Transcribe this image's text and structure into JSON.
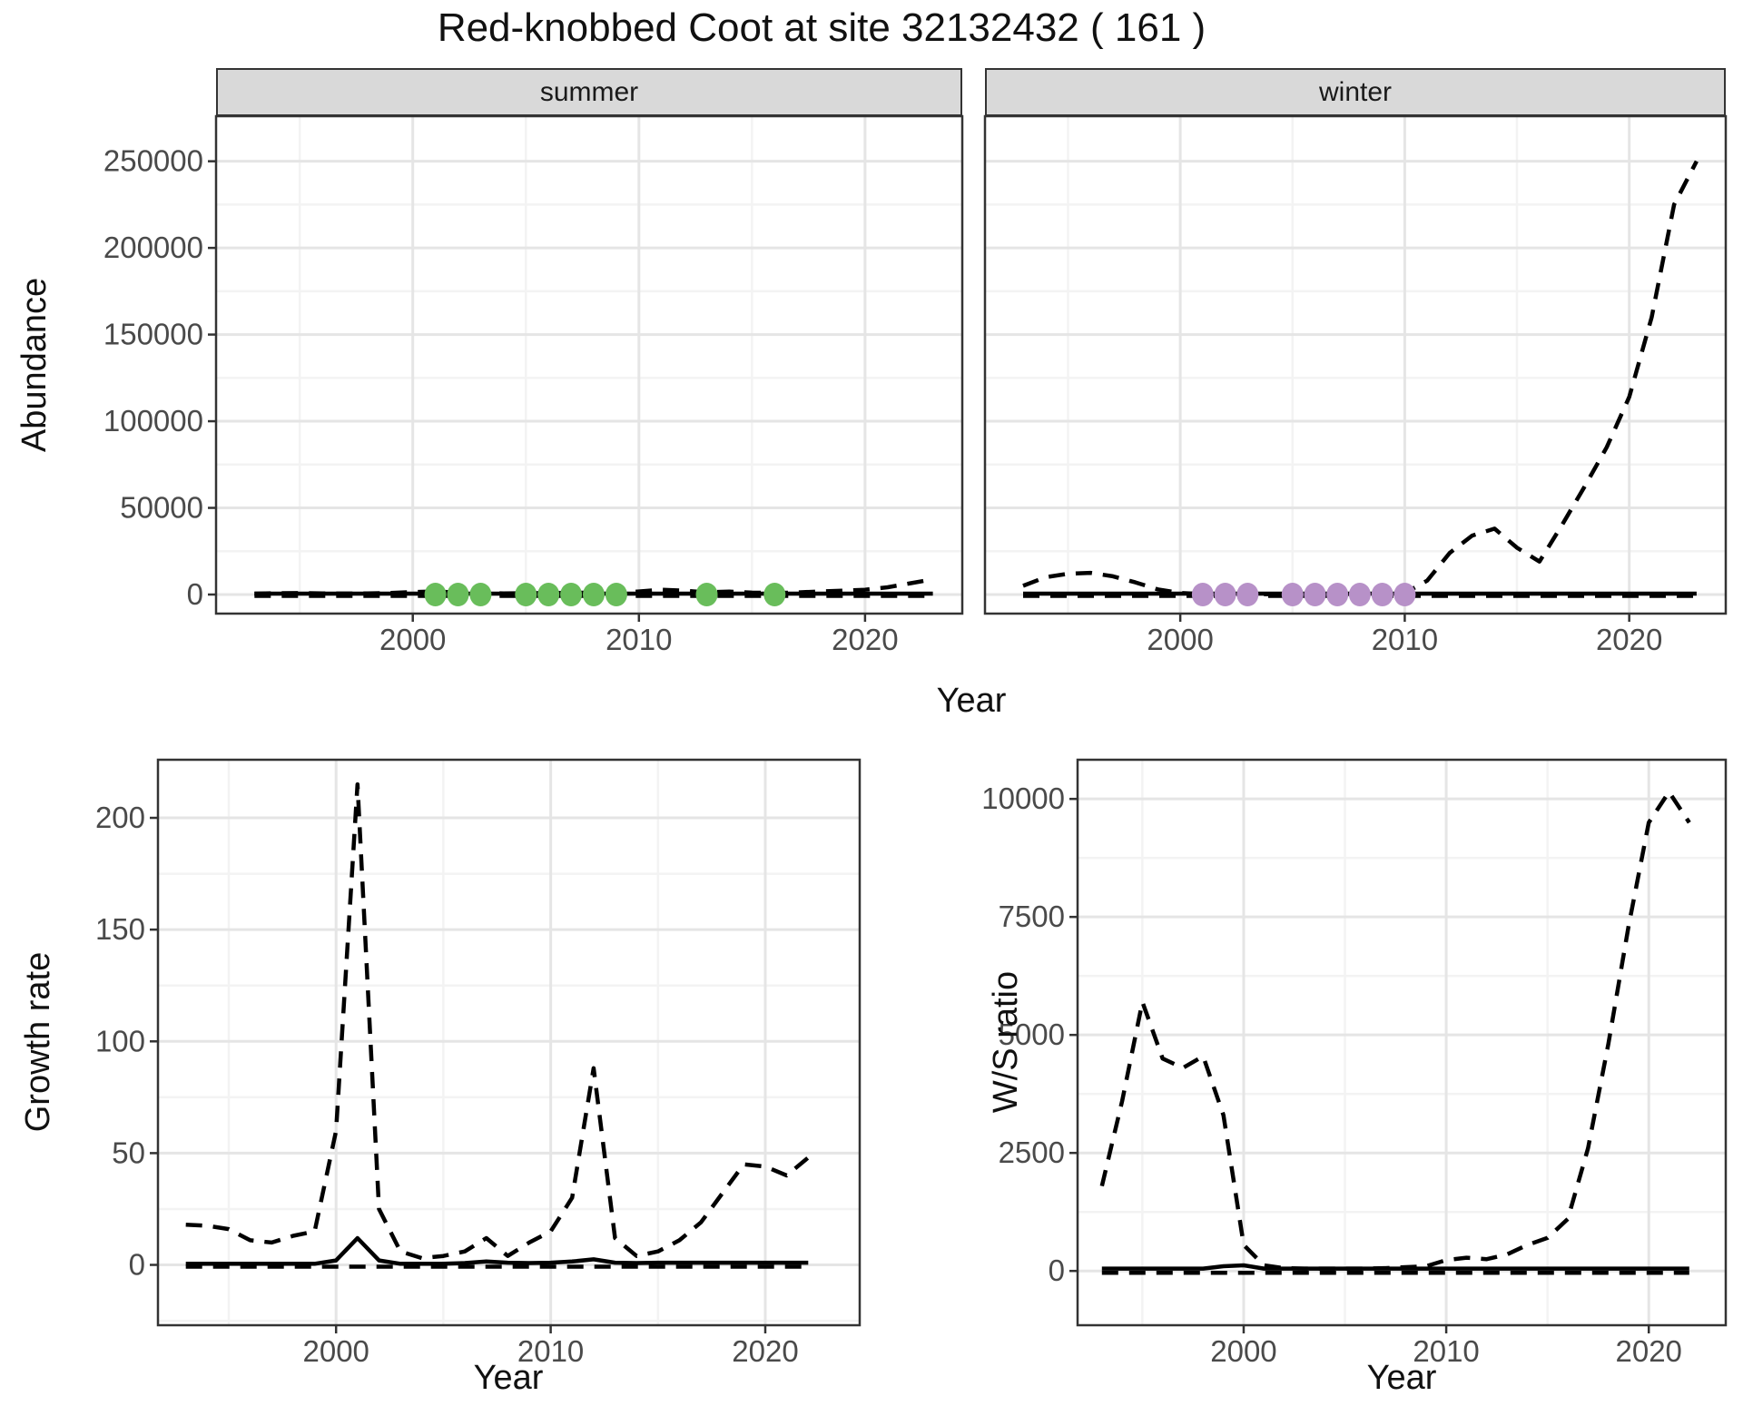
{
  "title": "Red-knobbed Coot at site 32132432 ( 161 )",
  "palette": {
    "line": "#000000",
    "grid_major": "#e5e5e5",
    "grid_minor": "#f3f3f3",
    "panel_border": "#333333",
    "strip_fill": "#d9d9d9",
    "tick_text": "#4a4a4a",
    "summer_point": "#69bd5b",
    "winter_point": "#b791c8"
  },
  "chart_data": [
    {
      "id": "abundance",
      "type": "line",
      "ylabel": "Abundance",
      "xlabel": "Year",
      "x": [
        1993,
        1994,
        1995,
        1996,
        1997,
        1998,
        1999,
        2000,
        2001,
        2002,
        2003,
        2004,
        2005,
        2006,
        2007,
        2008,
        2009,
        2010,
        2011,
        2012,
        2013,
        2014,
        2015,
        2016,
        2017,
        2018,
        2019,
        2020,
        2021,
        2022,
        2023
      ],
      "x_tick_values": [
        2000,
        2010,
        2020
      ],
      "x_tick_labels": [
        "2000",
        "2010",
        "2020"
      ],
      "y_tick_values": [
        0,
        50000,
        100000,
        150000,
        200000,
        250000
      ],
      "y_tick_labels": [
        "0",
        "50000",
        "100000",
        "150000",
        "200000",
        "250000"
      ],
      "xlim": [
        1991.3,
        2024.3
      ],
      "ylim": [
        -11000,
        276000
      ],
      "legend": "none",
      "facets": [
        {
          "label": "summer",
          "series": [
            {
              "name": "upper-ci",
              "style": "dashed",
              "values": [
                500,
                800,
                900,
                700,
                600,
                700,
                900,
                1400,
                1800,
                1200,
                900,
                700,
                800,
                900,
                1000,
                1100,
                900,
                1800,
                2800,
                2200,
                1300,
                1700,
                1100,
                900,
                1200,
                1800,
                2200,
                2800,
                4200,
                6500,
                8800
              ]
            },
            {
              "name": "median",
              "style": "solid",
              "values": [
                500,
                500,
                500,
                500,
                500,
                500,
                500,
                500,
                500,
                500,
                500,
                500,
                500,
                500,
                500,
                500,
                500,
                500,
                500,
                500,
                500,
                500,
                500,
                500,
                500,
                500,
                500,
                500,
                500,
                500,
                500
              ]
            },
            {
              "name": "lower-ci",
              "style": "dashed",
              "values": [
                -800,
                -800,
                -800,
                -800,
                -800,
                -800,
                -800,
                -800,
                -800,
                -800,
                -800,
                -800,
                -800,
                -800,
                -800,
                -800,
                -800,
                -800,
                -800,
                -800,
                -800,
                -800,
                -800,
                -800,
                -800,
                -800,
                -800,
                -800,
                -800,
                -800,
                -800
              ]
            }
          ],
          "points": {
            "name": "observed-counts-summer",
            "color": "#69bd5b",
            "x": [
              2001,
              2002,
              2003,
              2005,
              2006,
              2007,
              2008,
              2009,
              2013,
              2016
            ],
            "y": [
              0,
              0,
              0,
              0,
              0,
              0,
              0,
              0,
              0,
              0
            ]
          }
        },
        {
          "label": "winter",
          "series": [
            {
              "name": "upper-ci",
              "style": "dashed",
              "values": [
                5000,
                10000,
                12000,
                12500,
                10500,
                7000,
                3000,
                900,
                300,
                200,
                200,
                200,
                200,
                250,
                300,
                350,
                400,
                800,
                8000,
                24000,
                34000,
                38000,
                27000,
                19000,
                40000,
                62000,
                85000,
                114000,
                160000,
                225000,
                250000
              ]
            },
            {
              "name": "median",
              "style": "solid",
              "values": [
                500,
                500,
                500,
                500,
                500,
                500,
                500,
                500,
                500,
                500,
                500,
                500,
                500,
                500,
                500,
                500,
                500,
                500,
                500,
                500,
                500,
                500,
                500,
                500,
                500,
                500,
                500,
                500,
                500,
                500,
                500
              ]
            },
            {
              "name": "lower-ci",
              "style": "dashed",
              "values": [
                -800,
                -800,
                -800,
                -800,
                -800,
                -800,
                -800,
                -800,
                -800,
                -800,
                -800,
                -800,
                -800,
                -800,
                -800,
                -800,
                -800,
                -800,
                -800,
                -800,
                -800,
                -800,
                -800,
                -800,
                -800,
                -800,
                -800,
                -800,
                -800,
                -800,
                -800
              ]
            }
          ],
          "points": {
            "name": "observed-counts-winter",
            "color": "#b791c8",
            "x": [
              2001,
              2002,
              2003,
              2005,
              2006,
              2007,
              2008,
              2009,
              2010
            ],
            "y": [
              0,
              0,
              0,
              0,
              0,
              0,
              0,
              0,
              0
            ]
          }
        }
      ]
    },
    {
      "id": "growth-rate",
      "type": "line",
      "ylabel": "Growth rate",
      "xlabel": "Year",
      "x": [
        1993,
        1994,
        1995,
        1996,
        1997,
        1998,
        1999,
        2000,
        2001,
        2002,
        2003,
        2004,
        2005,
        2006,
        2007,
        2008,
        2009,
        2010,
        2011,
        2012,
        2013,
        2014,
        2015,
        2016,
        2017,
        2018,
        2019,
        2020,
        2021,
        2022
      ],
      "x_tick_values": [
        2000,
        2010,
        2020
      ],
      "x_tick_labels": [
        "2000",
        "2010",
        "2020"
      ],
      "y_tick_values": [
        0,
        50,
        100,
        150,
        200
      ],
      "y_tick_labels": [
        "0",
        "50",
        "100",
        "150",
        "200"
      ],
      "xlim": [
        1991.7,
        2024.4
      ],
      "ylim": [
        -27,
        226
      ],
      "series": [
        {
          "name": "upper-ci",
          "style": "dashed",
          "values": [
            18,
            17.5,
            16,
            11,
            10,
            13,
            15,
            60,
            215,
            25,
            6,
            3,
            4,
            6,
            12,
            4,
            10,
            15,
            30,
            88,
            12,
            4,
            6,
            11,
            19,
            32,
            45,
            44,
            40,
            48
          ]
        },
        {
          "name": "median",
          "style": "solid",
          "values": [
            0.5,
            0.5,
            0.5,
            0.5,
            0.5,
            0.5,
            0.5,
            2,
            12,
            2,
            0.5,
            0.5,
            0.5,
            0.8,
            1.5,
            1,
            0.8,
            1,
            1.5,
            2.5,
            1,
            0.8,
            1,
            1,
            1,
            1,
            1,
            1,
            1,
            1
          ]
        },
        {
          "name": "lower-ci",
          "style": "dashed",
          "values": [
            -0.8,
            -0.8,
            -0.8,
            -0.8,
            -0.8,
            -0.8,
            -0.8,
            -0.8,
            -0.8,
            -0.8,
            -0.8,
            -0.8,
            -0.8,
            -0.8,
            -0.8,
            -0.8,
            -0.8,
            -0.8,
            -0.8,
            -0.8,
            -0.8,
            -0.8,
            -0.8,
            -0.8,
            -0.8,
            -0.8,
            -0.8,
            -0.8,
            -0.8,
            -0.8
          ]
        }
      ]
    },
    {
      "id": "ws-ratio",
      "type": "line",
      "ylabel": "W/S ratio",
      "xlabel": "Year",
      "x": [
        1993,
        1994,
        1995,
        1996,
        1997,
        1998,
        1999,
        2000,
        2001,
        2002,
        2003,
        2004,
        2005,
        2006,
        2007,
        2008,
        2009,
        2010,
        2011,
        2012,
        2013,
        2014,
        2015,
        2016,
        2017,
        2018,
        2019,
        2020,
        2021,
        2022
      ],
      "x_tick_values": [
        2000,
        2010,
        2020
      ],
      "x_tick_labels": [
        "2000",
        "2010",
        "2020"
      ],
      "y_tick_values": [
        0,
        2500,
        5000,
        7500,
        10000
      ],
      "y_tick_labels": [
        "0",
        "2500",
        "5000",
        "7500",
        "10000"
      ],
      "xlim": [
        1991.8,
        2023.8
      ],
      "ylim": [
        -1150,
        10830
      ],
      "series": [
        {
          "name": "upper-ci",
          "style": "dashed",
          "values": [
            1800,
            3600,
            5700,
            4500,
            4300,
            4550,
            3300,
            550,
            120,
            60,
            50,
            50,
            50,
            50,
            60,
            80,
            100,
            230,
            280,
            250,
            350,
            550,
            700,
            1100,
            2600,
            4800,
            7300,
            9500,
            10150,
            9500
          ]
        },
        {
          "name": "median",
          "style": "solid",
          "values": [
            50,
            50,
            50,
            50,
            50,
            50,
            100,
            120,
            50,
            50,
            50,
            50,
            50,
            50,
            50,
            50,
            50,
            50,
            50,
            50,
            50,
            50,
            50,
            50,
            50,
            50,
            50,
            50,
            50,
            50
          ]
        },
        {
          "name": "lower-ci",
          "style": "dashed",
          "values": [
            -40,
            -40,
            -40,
            -40,
            -40,
            -40,
            -40,
            -40,
            -40,
            -40,
            -40,
            -40,
            -40,
            -40,
            -40,
            -40,
            -40,
            -40,
            -40,
            -40,
            -40,
            -40,
            -40,
            -40,
            -40,
            -40,
            -40,
            -40,
            -40,
            -40
          ]
        }
      ]
    }
  ]
}
